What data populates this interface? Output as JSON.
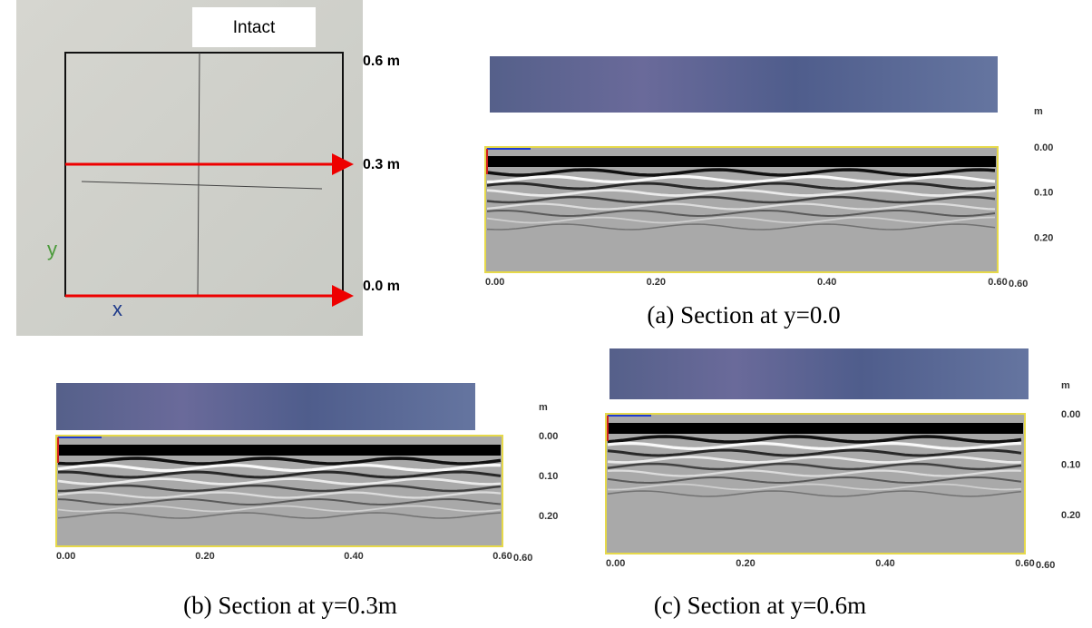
{
  "photo": {
    "label": "Intact",
    "y_marks": [
      "0.6 m",
      "0.3 m",
      "0.0 m"
    ],
    "axis_y": "y",
    "axis_x": "x"
  },
  "panels": [
    {
      "caption": "(a) Section at y=0.0",
      "depth_unit": "m",
      "depth_ticks": [
        "0.00",
        "0.10",
        "0.20"
      ],
      "distance_ticks": [
        "0.00",
        "0.20",
        "0.40",
        "0.60"
      ],
      "end_label": "0.60"
    },
    {
      "caption": "(b) Section at y=0.3m",
      "depth_unit": "m",
      "depth_ticks": [
        "0.00",
        "0.10",
        "0.20"
      ],
      "distance_ticks": [
        "0.00",
        "0.20",
        "0.40",
        "0.60"
      ],
      "end_label": "0.60"
    },
    {
      "caption": "(c) Section at y=0.6m",
      "depth_unit": "m",
      "depth_ticks": [
        "0.00",
        "0.10",
        "0.20"
      ],
      "distance_ticks": [
        "0.00",
        "0.20",
        "0.40",
        "0.60"
      ],
      "end_label": "0.60"
    }
  ]
}
